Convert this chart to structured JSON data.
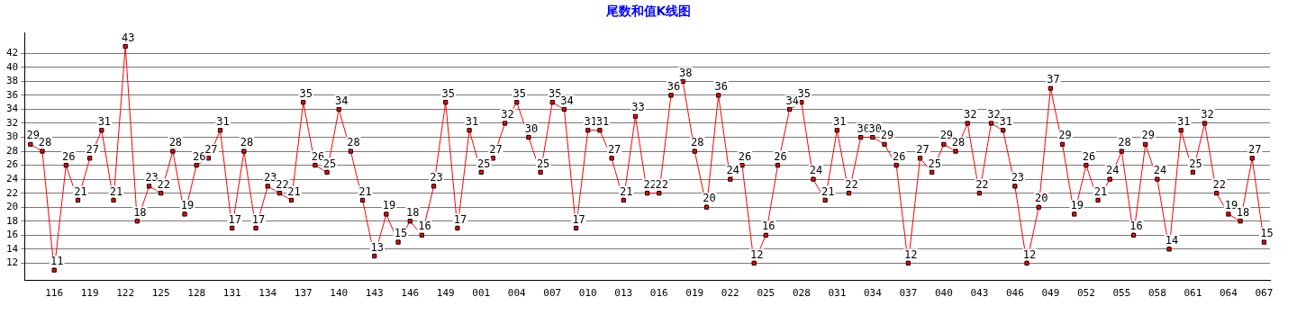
{
  "chart_data": {
    "type": "line",
    "title": "尾数和值K线图",
    "categories": [
      null,
      null,
      "116",
      null,
      null,
      "119",
      null,
      null,
      "122",
      null,
      null,
      "125",
      null,
      null,
      "128",
      null,
      null,
      "131",
      null,
      null,
      "134",
      null,
      null,
      "137",
      null,
      null,
      "140",
      null,
      null,
      "143",
      null,
      null,
      "146",
      null,
      null,
      "149",
      null,
      null,
      "001",
      null,
      null,
      "004",
      null,
      null,
      "007",
      null,
      null,
      "010",
      null,
      null,
      "013",
      null,
      null,
      "016",
      null,
      null,
      "019",
      null,
      null,
      "022",
      null,
      null,
      "025",
      null,
      null,
      "028",
      null,
      null,
      "031",
      null,
      null,
      "034",
      null,
      null,
      "037",
      null,
      null,
      "040",
      null,
      null,
      "043",
      null,
      null,
      "046",
      null,
      null,
      "049",
      null,
      null,
      "052",
      null,
      null,
      "055",
      null,
      null,
      "058",
      null,
      null,
      "061",
      null,
      null,
      "064",
      null,
      null,
      "067"
    ],
    "series": [
      {
        "color": "#ff0000",
        "values": [
          29,
          28,
          11,
          26,
          21,
          27,
          31,
          21,
          43,
          18,
          23,
          22,
          28,
          19,
          26,
          27,
          31,
          17,
          28,
          17,
          23,
          22,
          21,
          35,
          26,
          25,
          34,
          28,
          21,
          13,
          19,
          15,
          18,
          16,
          23,
          35,
          17,
          31,
          25,
          27,
          32,
          35,
          30,
          25,
          35,
          34,
          17,
          31,
          31,
          27,
          21,
          33,
          22,
          22,
          36,
          38,
          28,
          20,
          36,
          24,
          26,
          12,
          16,
          26,
          34,
          35,
          24,
          21,
          31,
          22,
          30,
          30,
          29,
          26,
          12,
          27,
          25,
          29,
          28,
          32,
          22,
          32,
          31,
          23,
          12,
          20,
          37,
          29,
          19,
          26,
          21,
          24,
          28,
          16,
          29,
          24,
          14,
          31,
          25,
          32,
          22,
          19,
          18,
          27,
          15
        ]
      }
    ],
    "ylim": [
      9.5,
      45
    ],
    "yticks": [
      12,
      14,
      16,
      18,
      20,
      22,
      24,
      26,
      28,
      30,
      32,
      34,
      36,
      38,
      40,
      42
    ],
    "grid": "y",
    "marker": "square",
    "line_style": "solid",
    "data_labels": true,
    "legend": false
  }
}
